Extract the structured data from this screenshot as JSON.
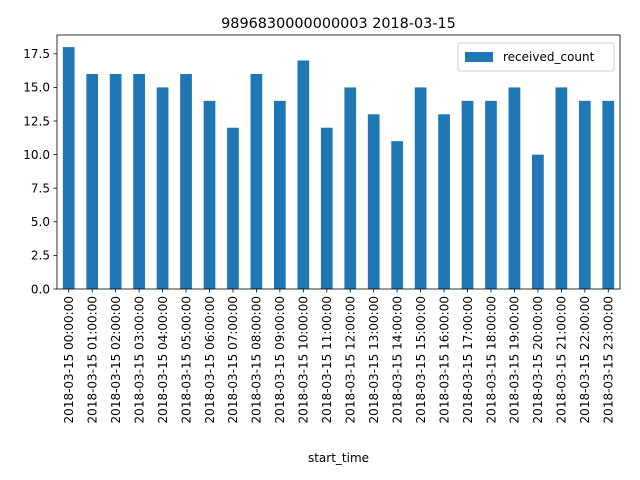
{
  "chart_data": {
    "type": "bar",
    "title": "9896830000000003 2018-03-15",
    "xlabel": "start_time",
    "ylabel": "",
    "ylim": [
      0,
      18.9
    ],
    "yticks": [
      "0.0",
      "2.5",
      "5.0",
      "7.5",
      "10.0",
      "12.5",
      "15.0",
      "17.5"
    ],
    "categories": [
      "2018-03-15 00:00:00",
      "2018-03-15 01:00:00",
      "2018-03-15 02:00:00",
      "2018-03-15 03:00:00",
      "2018-03-15 04:00:00",
      "2018-03-15 05:00:00",
      "2018-03-15 06:00:00",
      "2018-03-15 07:00:00",
      "2018-03-15 08:00:00",
      "2018-03-15 09:00:00",
      "2018-03-15 10:00:00",
      "2018-03-15 11:00:00",
      "2018-03-15 12:00:00",
      "2018-03-15 13:00:00",
      "2018-03-15 14:00:00",
      "2018-03-15 15:00:00",
      "2018-03-15 16:00:00",
      "2018-03-15 17:00:00",
      "2018-03-15 18:00:00",
      "2018-03-15 19:00:00",
      "2018-03-15 20:00:00",
      "2018-03-15 21:00:00",
      "2018-03-15 22:00:00",
      "2018-03-15 23:00:00"
    ],
    "series": [
      {
        "name": "received_count",
        "color": "#1f77b4",
        "values": [
          18,
          16,
          16,
          16,
          15,
          16,
          14,
          12,
          16,
          14,
          17,
          12,
          15,
          13,
          11,
          15,
          13,
          14,
          14,
          15,
          10,
          15,
          14,
          14
        ]
      }
    ],
    "legend": "top-right",
    "grid": false
  }
}
